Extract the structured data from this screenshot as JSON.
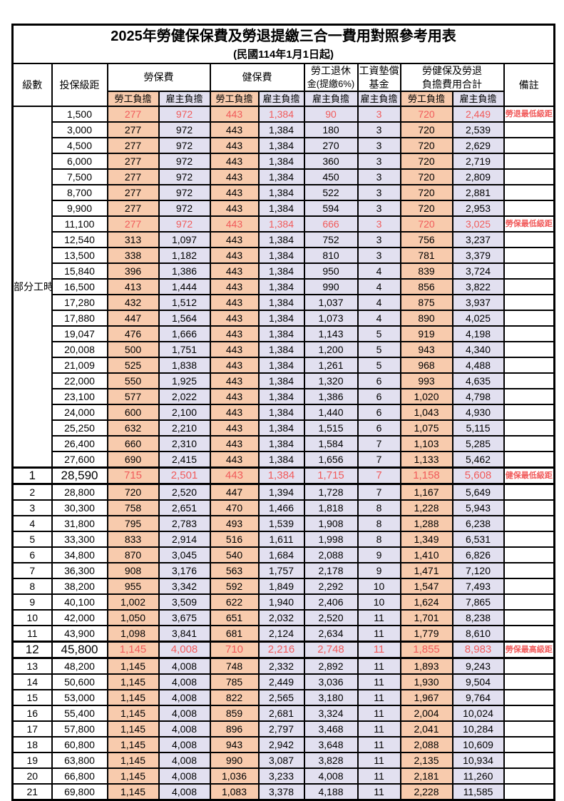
{
  "title": "2025年勞健保保費及勞退提繳三合一費用對照參考用表",
  "subtitle": "(民國114年1月1日起)",
  "header": {
    "level_label": "級數",
    "bracket_label": "投保級距",
    "labor_ins_label": "勞保費",
    "health_ins_label": "健保費",
    "pension_label_line1": "勞工退休",
    "pension_label_line2": "金(提繳6%)",
    "wage_fund_label_line1": "工資墊償",
    "wage_fund_label_line2": "基金",
    "total_label_line1": "勞健保及勞退",
    "total_label_line2": "負擔費用合計",
    "remark_label": "備註",
    "employee_label": "勞工負擔",
    "employer_label": "雇主負擔"
  },
  "part_time": {
    "label": "部分工時",
    "span": 23
  },
  "colors": {
    "employee_bg": "#F8CBAD",
    "employer_bg": "#E2E0F0",
    "highlight_text": "#F15B5B"
  },
  "rows": [
    {
      "level": "",
      "bracket": "1,500",
      "v": [
        "277",
        "972",
        "443",
        "1,384",
        "90",
        "3",
        "720",
        "2,449"
      ],
      "remark": "勞退最低級距",
      "hl": true,
      "big": false
    },
    {
      "level": "",
      "bracket": "3,000",
      "v": [
        "277",
        "972",
        "443",
        "1,384",
        "180",
        "3",
        "720",
        "2,539"
      ],
      "remark": "",
      "hl": false,
      "big": false
    },
    {
      "level": "",
      "bracket": "4,500",
      "v": [
        "277",
        "972",
        "443",
        "1,384",
        "270",
        "3",
        "720",
        "2,629"
      ],
      "remark": "",
      "hl": false,
      "big": false
    },
    {
      "level": "",
      "bracket": "6,000",
      "v": [
        "277",
        "972",
        "443",
        "1,384",
        "360",
        "3",
        "720",
        "2,719"
      ],
      "remark": "",
      "hl": false,
      "big": false
    },
    {
      "level": "",
      "bracket": "7,500",
      "v": [
        "277",
        "972",
        "443",
        "1,384",
        "450",
        "3",
        "720",
        "2,809"
      ],
      "remark": "",
      "hl": false,
      "big": false
    },
    {
      "level": "",
      "bracket": "8,700",
      "v": [
        "277",
        "972",
        "443",
        "1,384",
        "522",
        "3",
        "720",
        "2,881"
      ],
      "remark": "",
      "hl": false,
      "big": false
    },
    {
      "level": "",
      "bracket": "9,900",
      "v": [
        "277",
        "972",
        "443",
        "1,384",
        "594",
        "3",
        "720",
        "2,953"
      ],
      "remark": "",
      "hl": false,
      "big": false
    },
    {
      "level": "",
      "bracket": "11,100",
      "v": [
        "277",
        "972",
        "443",
        "1,384",
        "666",
        "3",
        "720",
        "3,025"
      ],
      "remark": "勞保最低級距",
      "hl": true,
      "big": false
    },
    {
      "level": "",
      "bracket": "12,540",
      "v": [
        "313",
        "1,097",
        "443",
        "1,384",
        "752",
        "3",
        "756",
        "3,237"
      ],
      "remark": "",
      "hl": false,
      "big": false
    },
    {
      "level": "",
      "bracket": "13,500",
      "v": [
        "338",
        "1,182",
        "443",
        "1,384",
        "810",
        "3",
        "781",
        "3,379"
      ],
      "remark": "",
      "hl": false,
      "big": false
    },
    {
      "level": "",
      "bracket": "15,840",
      "v": [
        "396",
        "1,386",
        "443",
        "1,384",
        "950",
        "4",
        "839",
        "3,724"
      ],
      "remark": "",
      "hl": false,
      "big": false
    },
    {
      "level": "",
      "bracket": "16,500",
      "v": [
        "413",
        "1,444",
        "443",
        "1,384",
        "990",
        "4",
        "856",
        "3,822"
      ],
      "remark": "",
      "hl": false,
      "big": false
    },
    {
      "level": "",
      "bracket": "17,280",
      "v": [
        "432",
        "1,512",
        "443",
        "1,384",
        "1,037",
        "4",
        "875",
        "3,937"
      ],
      "remark": "",
      "hl": false,
      "big": false
    },
    {
      "level": "",
      "bracket": "17,880",
      "v": [
        "447",
        "1,564",
        "443",
        "1,384",
        "1,073",
        "4",
        "890",
        "4,025"
      ],
      "remark": "",
      "hl": false,
      "big": false
    },
    {
      "level": "",
      "bracket": "19,047",
      "v": [
        "476",
        "1,666",
        "443",
        "1,384",
        "1,143",
        "5",
        "919",
        "4,198"
      ],
      "remark": "",
      "hl": false,
      "big": false
    },
    {
      "level": "",
      "bracket": "20,008",
      "v": [
        "500",
        "1,751",
        "443",
        "1,384",
        "1,200",
        "5",
        "943",
        "4,340"
      ],
      "remark": "",
      "hl": false,
      "big": false
    },
    {
      "level": "",
      "bracket": "21,009",
      "v": [
        "525",
        "1,838",
        "443",
        "1,384",
        "1,261",
        "5",
        "968",
        "4,488"
      ],
      "remark": "",
      "hl": false,
      "big": false
    },
    {
      "level": "",
      "bracket": "22,000",
      "v": [
        "550",
        "1,925",
        "443",
        "1,384",
        "1,320",
        "6",
        "993",
        "4,635"
      ],
      "remark": "",
      "hl": false,
      "big": false
    },
    {
      "level": "",
      "bracket": "23,100",
      "v": [
        "577",
        "2,022",
        "443",
        "1,384",
        "1,386",
        "6",
        "1,020",
        "4,798"
      ],
      "remark": "",
      "hl": false,
      "big": false
    },
    {
      "level": "",
      "bracket": "24,000",
      "v": [
        "600",
        "2,100",
        "443",
        "1,384",
        "1,440",
        "6",
        "1,043",
        "4,930"
      ],
      "remark": "",
      "hl": false,
      "big": false
    },
    {
      "level": "",
      "bracket": "25,250",
      "v": [
        "632",
        "2,210",
        "443",
        "1,384",
        "1,515",
        "6",
        "1,075",
        "5,115"
      ],
      "remark": "",
      "hl": false,
      "big": false
    },
    {
      "level": "",
      "bracket": "26,400",
      "v": [
        "660",
        "2,310",
        "443",
        "1,384",
        "1,584",
        "7",
        "1,103",
        "5,285"
      ],
      "remark": "",
      "hl": false,
      "big": false
    },
    {
      "level": "",
      "bracket": "27,600",
      "v": [
        "690",
        "2,415",
        "443",
        "1,384",
        "1,656",
        "7",
        "1,133",
        "5,462"
      ],
      "remark": "",
      "hl": false,
      "big": false
    },
    {
      "level": "1",
      "bracket": "28,590",
      "v": [
        "715",
        "2,501",
        "443",
        "1,384",
        "1,715",
        "7",
        "1,158",
        "5,608"
      ],
      "remark": "健保最低級距",
      "hl": true,
      "big": true
    },
    {
      "level": "2",
      "bracket": "28,800",
      "v": [
        "720",
        "2,520",
        "447",
        "1,394",
        "1,728",
        "7",
        "1,167",
        "5,649"
      ],
      "remark": "",
      "hl": false,
      "big": false
    },
    {
      "level": "3",
      "bracket": "30,300",
      "v": [
        "758",
        "2,651",
        "470",
        "1,466",
        "1,818",
        "8",
        "1,228",
        "5,943"
      ],
      "remark": "",
      "hl": false,
      "big": false
    },
    {
      "level": "4",
      "bracket": "31,800",
      "v": [
        "795",
        "2,783",
        "493",
        "1,539",
        "1,908",
        "8",
        "1,288",
        "6,238"
      ],
      "remark": "",
      "hl": false,
      "big": false
    },
    {
      "level": "5",
      "bracket": "33,300",
      "v": [
        "833",
        "2,914",
        "516",
        "1,611",
        "1,998",
        "8",
        "1,349",
        "6,531"
      ],
      "remark": "",
      "hl": false,
      "big": false
    },
    {
      "level": "6",
      "bracket": "34,800",
      "v": [
        "870",
        "3,045",
        "540",
        "1,684",
        "2,088",
        "9",
        "1,410",
        "6,826"
      ],
      "remark": "",
      "hl": false,
      "big": false
    },
    {
      "level": "7",
      "bracket": "36,300",
      "v": [
        "908",
        "3,176",
        "563",
        "1,757",
        "2,178",
        "9",
        "1,471",
        "7,120"
      ],
      "remark": "",
      "hl": false,
      "big": false
    },
    {
      "level": "8",
      "bracket": "38,200",
      "v": [
        "955",
        "3,342",
        "592",
        "1,849",
        "2,292",
        "10",
        "1,547",
        "7,493"
      ],
      "remark": "",
      "hl": false,
      "big": false
    },
    {
      "level": "9",
      "bracket": "40,100",
      "v": [
        "1,002",
        "3,509",
        "622",
        "1,940",
        "2,406",
        "10",
        "1,624",
        "7,865"
      ],
      "remark": "",
      "hl": false,
      "big": false
    },
    {
      "level": "10",
      "bracket": "42,000",
      "v": [
        "1,050",
        "3,675",
        "651",
        "2,032",
        "2,520",
        "11",
        "1,701",
        "8,238"
      ],
      "remark": "",
      "hl": false,
      "big": false
    },
    {
      "level": "11",
      "bracket": "43,900",
      "v": [
        "1,098",
        "3,841",
        "681",
        "2,124",
        "2,634",
        "11",
        "1,779",
        "8,610"
      ],
      "remark": "",
      "hl": false,
      "big": false
    },
    {
      "level": "12",
      "bracket": "45,800",
      "v": [
        "1,145",
        "4,008",
        "710",
        "2,216",
        "2,748",
        "11",
        "1,855",
        "8,983"
      ],
      "remark": "勞保最高級距",
      "hl": true,
      "big": true
    },
    {
      "level": "13",
      "bracket": "48,200",
      "v": [
        "1,145",
        "4,008",
        "748",
        "2,332",
        "2,892",
        "11",
        "1,893",
        "9,243"
      ],
      "remark": "",
      "hl": false,
      "big": false
    },
    {
      "level": "14",
      "bracket": "50,600",
      "v": [
        "1,145",
        "4,008",
        "785",
        "2,449",
        "3,036",
        "11",
        "1,930",
        "9,504"
      ],
      "remark": "",
      "hl": false,
      "big": false
    },
    {
      "level": "15",
      "bracket": "53,000",
      "v": [
        "1,145",
        "4,008",
        "822",
        "2,565",
        "3,180",
        "11",
        "1,967",
        "9,764"
      ],
      "remark": "",
      "hl": false,
      "big": false
    },
    {
      "level": "16",
      "bracket": "55,400",
      "v": [
        "1,145",
        "4,008",
        "859",
        "2,681",
        "3,324",
        "11",
        "2,004",
        "10,024"
      ],
      "remark": "",
      "hl": false,
      "big": false
    },
    {
      "level": "17",
      "bracket": "57,800",
      "v": [
        "1,145",
        "4,008",
        "896",
        "2,797",
        "3,468",
        "11",
        "2,041",
        "10,284"
      ],
      "remark": "",
      "hl": false,
      "big": false
    },
    {
      "level": "18",
      "bracket": "60,800",
      "v": [
        "1,145",
        "4,008",
        "943",
        "2,942",
        "3,648",
        "11",
        "2,088",
        "10,609"
      ],
      "remark": "",
      "hl": false,
      "big": false
    },
    {
      "level": "19",
      "bracket": "63,800",
      "v": [
        "1,145",
        "4,008",
        "990",
        "3,087",
        "3,828",
        "11",
        "2,135",
        "10,934"
      ],
      "remark": "",
      "hl": false,
      "big": false
    },
    {
      "level": "20",
      "bracket": "66,800",
      "v": [
        "1,145",
        "4,008",
        "1,036",
        "3,233",
        "4,008",
        "11",
        "2,181",
        "11,260"
      ],
      "remark": "",
      "hl": false,
      "big": false
    },
    {
      "level": "21",
      "bracket": "69,800",
      "v": [
        "1,145",
        "4,008",
        "1,083",
        "3,378",
        "4,188",
        "11",
        "2,228",
        "11,585"
      ],
      "remark": "",
      "hl": false,
      "big": false
    }
  ]
}
